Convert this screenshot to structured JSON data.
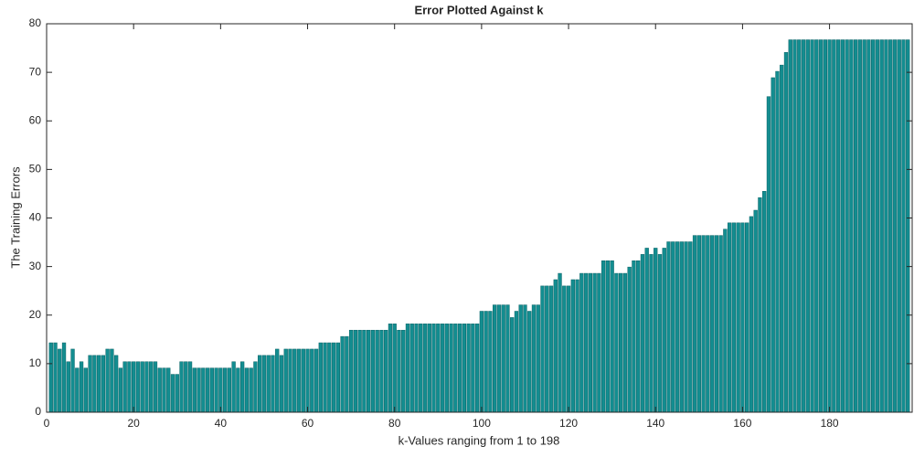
{
  "chart_data": {
    "type": "bar",
    "title": "Error Plotted Against k",
    "xlabel": "k-Values ranging from 1 to 198",
    "ylabel": "The Training Errors",
    "color": "#138d90",
    "x": [
      1,
      2,
      3,
      4,
      5,
      6,
      7,
      8,
      9,
      10,
      11,
      12,
      13,
      14,
      15,
      16,
      17,
      18,
      19,
      20,
      21,
      22,
      23,
      24,
      25,
      26,
      27,
      28,
      29,
      30,
      31,
      32,
      33,
      34,
      35,
      36,
      37,
      38,
      39,
      40,
      41,
      42,
      43,
      44,
      45,
      46,
      47,
      48,
      49,
      50,
      51,
      52,
      53,
      54,
      55,
      56,
      57,
      58,
      59,
      60,
      61,
      62,
      63,
      64,
      65,
      66,
      67,
      68,
      69,
      70,
      71,
      72,
      73,
      74,
      75,
      76,
      77,
      78,
      79,
      80,
      81,
      82,
      83,
      84,
      85,
      86,
      87,
      88,
      89,
      90,
      91,
      92,
      93,
      94,
      95,
      96,
      97,
      98,
      99,
      100,
      101,
      102,
      103,
      104,
      105,
      106,
      107,
      108,
      109,
      110,
      111,
      112,
      113,
      114,
      115,
      116,
      117,
      118,
      119,
      120,
      121,
      122,
      123,
      124,
      125,
      126,
      127,
      128,
      129,
      130,
      131,
      132,
      133,
      134,
      135,
      136,
      137,
      138,
      139,
      140,
      141,
      142,
      143,
      144,
      145,
      146,
      147,
      148,
      149,
      150,
      151,
      152,
      153,
      154,
      155,
      156,
      157,
      158,
      159,
      160,
      161,
      162,
      163,
      164,
      165,
      166,
      167,
      168,
      169,
      170,
      171,
      172,
      173,
      174,
      175,
      176,
      177,
      178,
      179,
      180,
      181,
      182,
      183,
      184,
      185,
      186,
      187,
      188,
      189,
      190,
      191,
      192,
      193,
      194,
      195,
      196,
      197,
      198
    ],
    "values": [
      14.3,
      14.3,
      13,
      14.3,
      10.4,
      13,
      9.1,
      10.4,
      9.1,
      11.7,
      11.7,
      11.7,
      11.7,
      13,
      13,
      11.7,
      9.1,
      10.4,
      10.4,
      10.4,
      10.4,
      10.4,
      10.4,
      10.4,
      10.4,
      9.1,
      9.1,
      9.1,
      7.8,
      7.8,
      10.4,
      10.4,
      10.4,
      9.1,
      9.1,
      9.1,
      9.1,
      9.1,
      9.1,
      9.1,
      9.1,
      9.1,
      10.4,
      9.1,
      10.4,
      9.1,
      9.1,
      10.4,
      11.7,
      11.7,
      11.7,
      11.7,
      13,
      11.7,
      13,
      13,
      13,
      13,
      13,
      13,
      13,
      13,
      14.3,
      14.3,
      14.3,
      14.3,
      14.3,
      15.6,
      15.6,
      16.9,
      16.9,
      16.9,
      16.9,
      16.9,
      16.9,
      16.9,
      16.9,
      16.9,
      18.2,
      18.2,
      16.9,
      16.9,
      18.2,
      18.2,
      18.2,
      18.2,
      18.2,
      18.2,
      18.2,
      18.2,
      18.2,
      18.2,
      18.2,
      18.2,
      18.2,
      18.2,
      18.2,
      18.2,
      18.2,
      20.8,
      20.8,
      20.8,
      22.1,
      22.1,
      22.1,
      22.1,
      19.5,
      20.8,
      22.1,
      22.1,
      20.8,
      22.1,
      22.1,
      26,
      26,
      26,
      27.3,
      28.6,
      26,
      26,
      27.3,
      27.3,
      28.6,
      28.6,
      28.6,
      28.6,
      28.6,
      31.2,
      31.2,
      31.2,
      28.6,
      28.6,
      28.6,
      29.9,
      31.2,
      31.2,
      32.5,
      33.8,
      32.5,
      33.8,
      32.5,
      33.8,
      35.1,
      35.1,
      35.1,
      35.1,
      35.1,
      35.1,
      36.4,
      36.4,
      36.4,
      36.4,
      36.4,
      36.4,
      36.4,
      37.7,
      39,
      39,
      39,
      39,
      39,
      40.3,
      41.6,
      44.2,
      45.5,
      65,
      68.9,
      70.2,
      71.5,
      74.1,
      76.7,
      76.7,
      76.7,
      76.7,
      76.7,
      76.7,
      76.7,
      76.7,
      76.7,
      76.7,
      76.7,
      76.7,
      76.7,
      76.7,
      76.7,
      76.7,
      76.7,
      76.7,
      76.7,
      76.7,
      76.7,
      76.7,
      76.7,
      76.7,
      76.7,
      76.7,
      76.7,
      76.7
    ],
    "xlim": [
      0,
      199
    ],
    "xticks": [
      0,
      20,
      40,
      60,
      80,
      100,
      120,
      140,
      160,
      180
    ],
    "ylim": [
      0,
      80
    ],
    "yticks": [
      0,
      10,
      20,
      30,
      40,
      50,
      60,
      70,
      80
    ],
    "grid": false
  }
}
